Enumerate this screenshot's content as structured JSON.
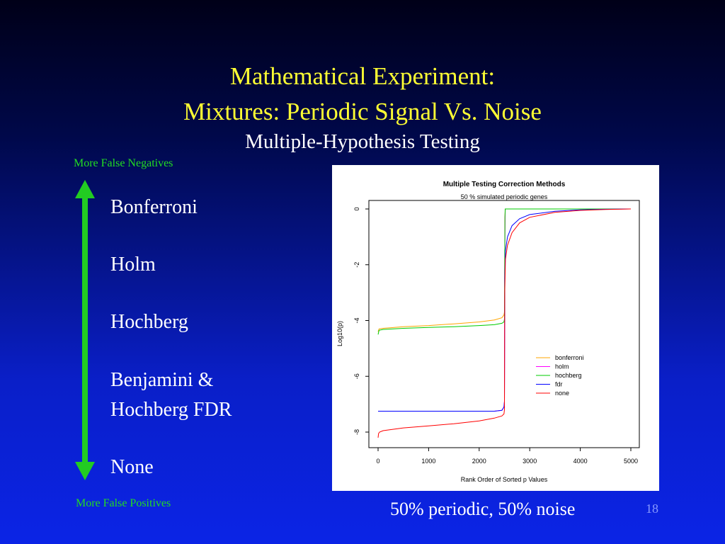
{
  "slide": {
    "title_line1": "Mathematical Experiment:",
    "title_line2": "Mixtures:  Periodic Signal Vs. Noise",
    "subtitle": "Multiple-Hypothesis Testing",
    "top_label": "More False Negatives",
    "bottom_label": "More False Positives",
    "methods": [
      "Bonferroni",
      "Holm",
      "Hochberg",
      "Benjamini &",
      "Hochberg FDR",
      "None"
    ],
    "caption": "50% periodic, 50% noise",
    "page_number": "18",
    "arrow_color": "#22cc22"
  },
  "chart_data": {
    "type": "line",
    "title": "Multiple Testing Correction Methods",
    "subtitle": "50 % simulated periodic genes",
    "xlabel": "Rank Order of Sorted p Values",
    "ylabel": "Log10(p)",
    "xlim": [
      0,
      5000
    ],
    "ylim": [
      -8.5,
      0.3
    ],
    "x_ticks": [
      0,
      1000,
      2000,
      3000,
      4000,
      5000
    ],
    "y_ticks": [
      0,
      -2,
      -4,
      -6,
      -8
    ],
    "legend_position": "right",
    "grid": false,
    "series": [
      {
        "name": "bonferroni",
        "color": "#ffa500",
        "x": [
          0,
          20,
          100,
          500,
          1000,
          1500,
          2000,
          2300,
          2450,
          2490,
          2500,
          2505,
          2510,
          2515,
          5000
        ],
        "y": [
          -4.4,
          -4.3,
          -4.28,
          -4.22,
          -4.18,
          -4.12,
          -4.05,
          -3.98,
          -3.9,
          -3.8,
          -3.7,
          -2,
          -0.3,
          0,
          0
        ]
      },
      {
        "name": "holm",
        "color": "#ff00ff",
        "x": [
          0,
          500,
          1000,
          1500,
          2000,
          2300,
          2450,
          2490,
          2500,
          2505,
          2510,
          2515,
          5000
        ],
        "y": [
          -7.25,
          -7.25,
          -7.25,
          -7.25,
          -7.25,
          -7.25,
          -7.22,
          -7.1,
          -6.9,
          -3.5,
          -1.0,
          0,
          0
        ]
      },
      {
        "name": "hochberg",
        "color": "#00cc00",
        "x": [
          0,
          20,
          100,
          500,
          1000,
          1500,
          2000,
          2300,
          2450,
          2490,
          2500,
          2505,
          2510,
          2515,
          5000
        ],
        "y": [
          -4.5,
          -4.35,
          -4.32,
          -4.28,
          -4.25,
          -4.22,
          -4.18,
          -4.15,
          -4.1,
          -4.05,
          -3.95,
          -2,
          -0.3,
          0,
          0
        ]
      },
      {
        "name": "fdr",
        "color": "#0000ff",
        "x": [
          0,
          500,
          1000,
          1500,
          2000,
          2300,
          2450,
          2490,
          2500,
          2505,
          2520,
          2560,
          2650,
          2800,
          3000,
          3500,
          4000,
          4500,
          5000
        ],
        "y": [
          -7.25,
          -7.25,
          -7.25,
          -7.25,
          -7.25,
          -7.25,
          -7.22,
          -7.1,
          -6.9,
          -2.5,
          -1.5,
          -1.0,
          -0.6,
          -0.35,
          -0.2,
          -0.08,
          -0.03,
          -0.01,
          0
        ]
      },
      {
        "name": "none",
        "color": "#ff0000",
        "x": [
          0,
          10,
          30,
          100,
          500,
          1000,
          1500,
          2000,
          2300,
          2450,
          2490,
          2500,
          2505,
          2520,
          2560,
          2650,
          2800,
          3000,
          3500,
          4000,
          4500,
          5000
        ],
        "y": [
          -8.2,
          -8.05,
          -8.0,
          -7.95,
          -7.85,
          -7.78,
          -7.7,
          -7.6,
          -7.5,
          -7.42,
          -7.35,
          -7.2,
          -3.0,
          -1.8,
          -1.3,
          -0.85,
          -0.5,
          -0.3,
          -0.12,
          -0.05,
          -0.02,
          0
        ]
      }
    ]
  }
}
